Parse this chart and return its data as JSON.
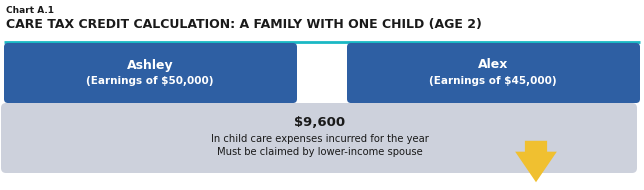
{
  "chart_label": "Chart A.1",
  "title": "CARE TAX CREDIT CALCULATION: A FAMILY WITH ONE CHILD (AGE 2)",
  "title_color": "#1a1a1a",
  "title_line_color": "#1ab8c4",
  "person1_name": "Ashley",
  "person1_earnings": "(Earnings of $50,000)",
  "person2_name": "Alex",
  "person2_earnings": "(Earnings of $45,000)",
  "box_color": "#2e5fa3",
  "box_text_color": "#ffffff",
  "bottom_box_color": "#cdd1dc",
  "bottom_amount": "$9,600",
  "bottom_line1": "In child care expenses incurred for the year",
  "bottom_line2": "Must be claimed by lower-income spouse",
  "arrow_color": "#f0c030",
  "background_color": "#ffffff"
}
